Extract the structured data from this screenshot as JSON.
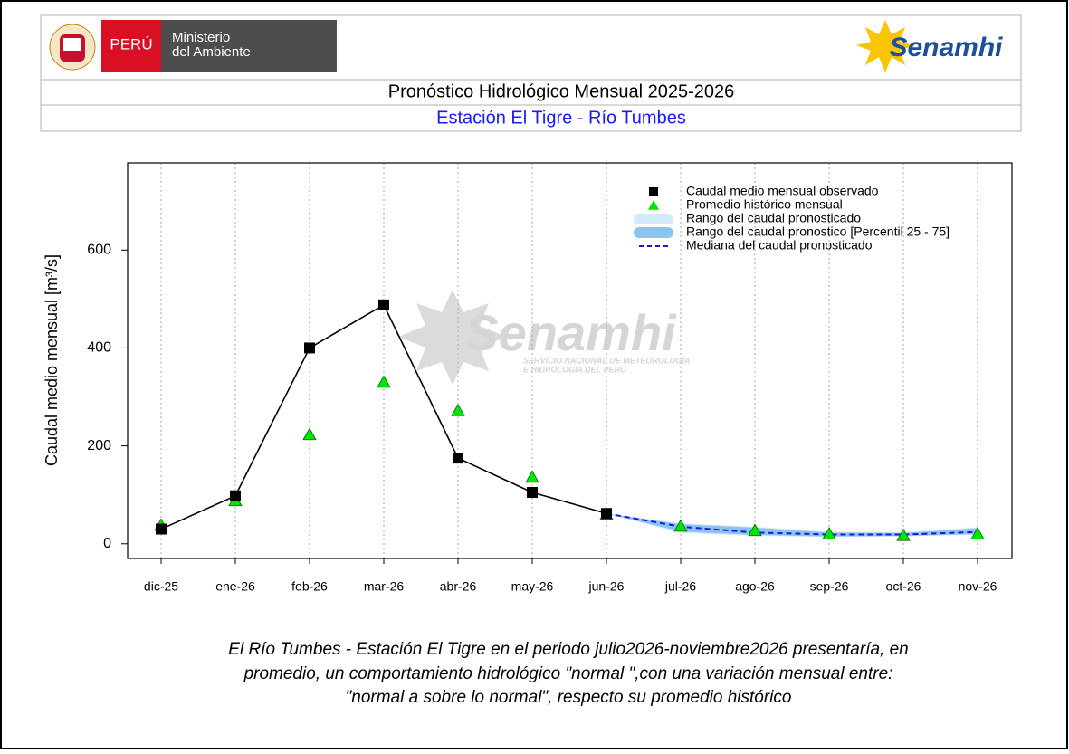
{
  "header": {
    "country": "PERÚ",
    "ministry": [
      "Ministerio",
      "del Ambiente"
    ],
    "brand": "Senamhi",
    "title": "Pronóstico Hidrológico Mensual 2025-2026",
    "subtitle": "Estación El Tigre - Río Tumbes"
  },
  "watermark": {
    "brand": "Senamhi",
    "lines": [
      "SERVICIO NACIONAL DE METEOROLOGÍA",
      "E HIDROLOGÍA DEL PERÚ"
    ]
  },
  "chart_data": {
    "type": "line",
    "y_label": "Caudal medio mensual  [m³/s]",
    "categories": [
      "dic-25",
      "ene-26",
      "feb-26",
      "mar-26",
      "abr-26",
      "may-26",
      "jun-26",
      "jul-26",
      "ago-26",
      "sep-26",
      "oct-26",
      "nov-26"
    ],
    "ylim": [
      -30,
      778
    ],
    "yticks": [
      0,
      200,
      400,
      600
    ],
    "grid": "x",
    "legend": "top-right",
    "series": [
      {
        "name": "Caudal medio mensual observado",
        "color": "#000000",
        "marker": "square",
        "values": [
          30,
          98,
          400,
          488,
          175,
          105,
          62,
          null,
          null,
          null,
          null,
          null
        ]
      },
      {
        "name": "Promedio histórico mensual",
        "color": "#00e600",
        "marker": "triangle",
        "values": [
          38,
          88,
          223,
          330,
          272,
          136,
          60,
          36,
          27,
          20,
          17,
          20
        ]
      },
      {
        "name": "Rango del caudal pronosticado",
        "color": "#d4eafc",
        "band": true,
        "lower": [
          null,
          null,
          null,
          null,
          null,
          null,
          62,
          22,
          16,
          14,
          15,
          18
        ],
        "upper": [
          null,
          null,
          null,
          null,
          null,
          null,
          62,
          42,
          35,
          25,
          24,
          34
        ]
      },
      {
        "name": "Rango del caudal pronostico [Percentil 25 - 75]",
        "color": "#8cc3f0",
        "band": true,
        "lower": [
          null,
          null,
          null,
          null,
          null,
          null,
          62,
          25,
          18,
          15,
          16,
          20
        ],
        "upper": [
          null,
          null,
          null,
          null,
          null,
          null,
          62,
          40,
          33,
          23,
          22,
          32
        ]
      },
      {
        "name": "Mediana del caudal pronosticado",
        "color": "#1a1adb",
        "dashed": true,
        "values": [
          null,
          null,
          null,
          null,
          null,
          null,
          62,
          35,
          23,
          19,
          19,
          24
        ]
      }
    ]
  },
  "note": [
    "El Río Tumbes - Estación El Tigre en el periodo julio2026-noviembre2026 presentaría, en",
    "promedio, un comportamiento hidrológico \"normal \",con una variación mensual entre:",
    "\"normal a sobre lo normal\", respecto su promedio histórico"
  ]
}
